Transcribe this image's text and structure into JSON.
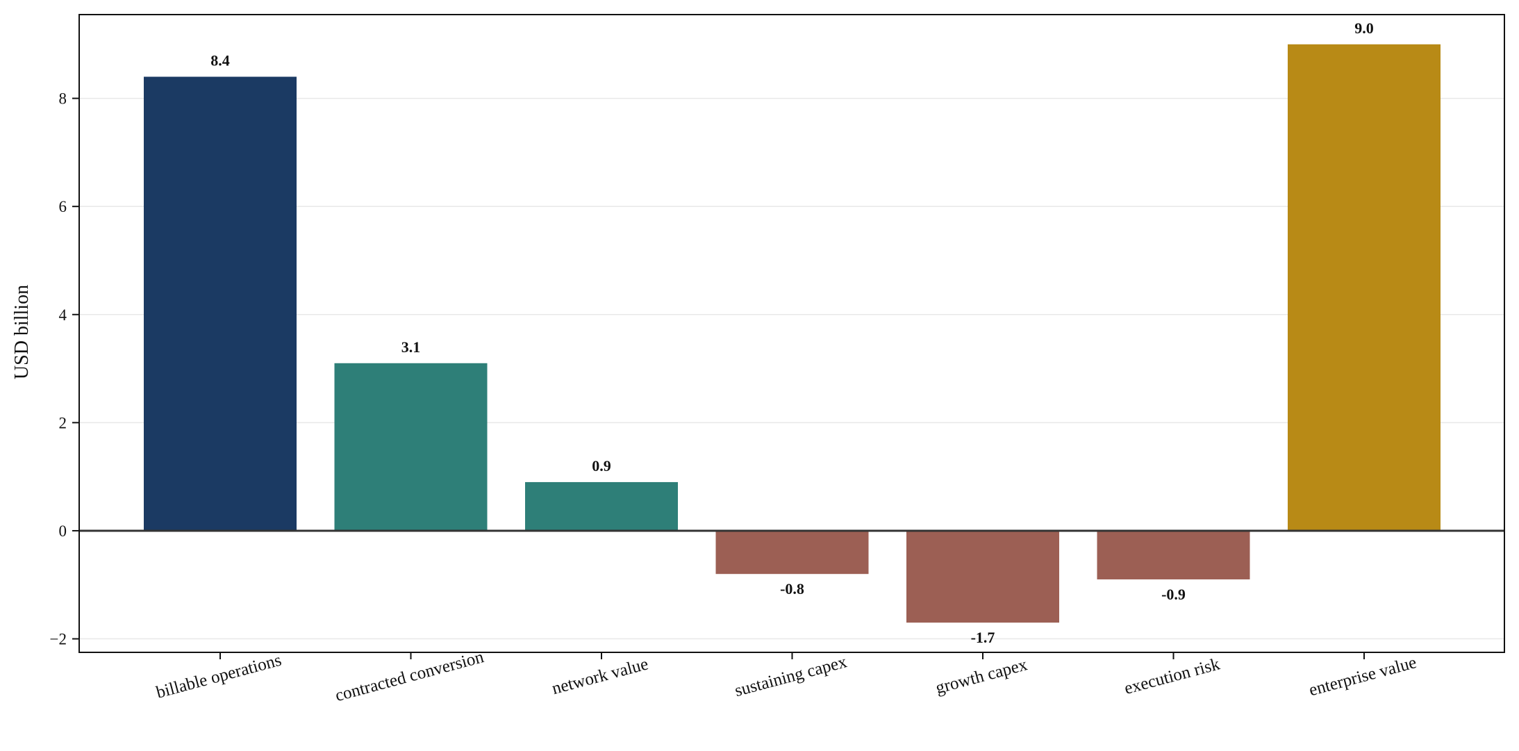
{
  "chart_data": {
    "type": "bar",
    "categories": [
      "billable operations",
      "contracted conversion",
      "network value",
      "sustaining capex",
      "growth capex",
      "execution risk",
      "enterprise value"
    ],
    "values": [
      8.4,
      3.1,
      0.9,
      -0.8,
      -1.7,
      -0.9,
      9.0
    ],
    "value_labels": [
      "8.4",
      "3.1",
      "0.9",
      "-0.8",
      "-1.7",
      "-0.9",
      "9.0"
    ],
    "bar_colors": [
      "#1b3a63",
      "#2e7f78",
      "#2e7f78",
      "#9c5f54",
      "#9c5f54",
      "#9c5f54",
      "#b88a16"
    ],
    "ylabel": "USD billion",
    "xlabel": "",
    "title": "",
    "ylim": [
      -2.25,
      9.55
    ],
    "yticks": [
      -2,
      0,
      2,
      4,
      6,
      8
    ],
    "ytick_labels": [
      "−2",
      "0",
      "2",
      "4",
      "6",
      "8"
    ],
    "grid": "horizontal",
    "zero_line": true
  }
}
